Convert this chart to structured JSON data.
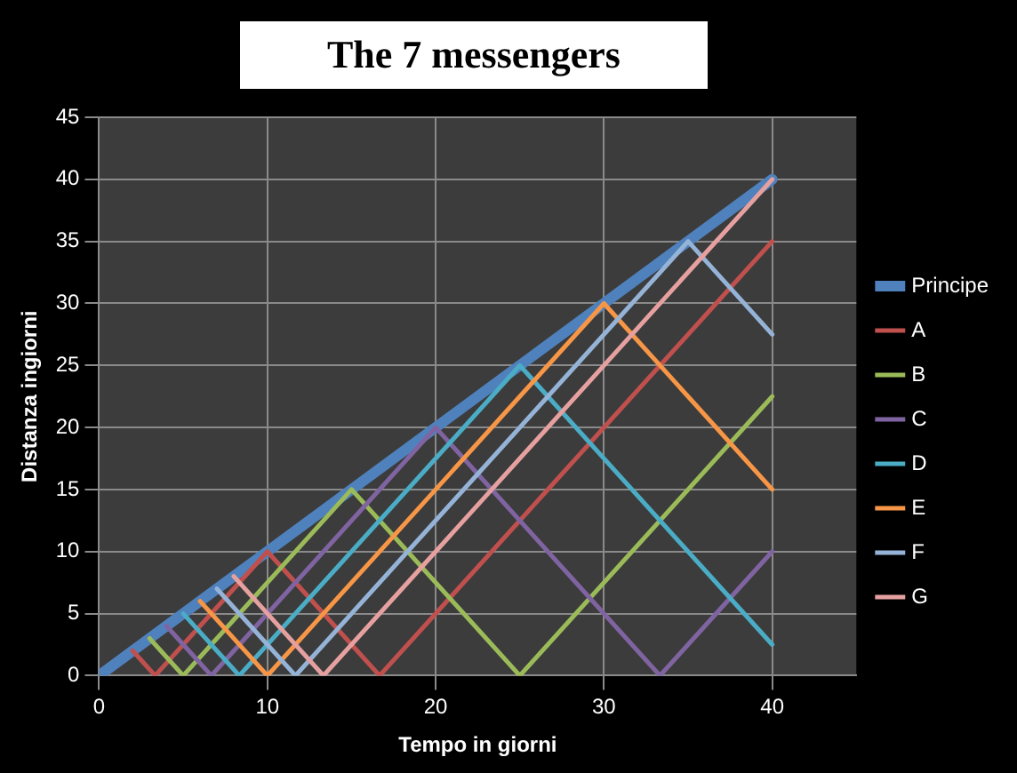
{
  "chart_data": {
    "type": "line",
    "title": "The 7 messengers",
    "xlabel": "Tempo in giorni",
    "ylabel": "Distanza ingiorni",
    "xlim": [
      0,
      45
    ],
    "xticks": [
      0,
      10,
      20,
      30,
      40
    ],
    "ylim": [
      0,
      45
    ],
    "yticks": [
      0,
      5,
      10,
      15,
      20,
      25,
      30,
      35,
      40,
      45
    ],
    "grid": true,
    "legend": "right",
    "marker": "none",
    "line_style": "solid",
    "series": [
      {
        "name": "Principe",
        "color": "#4f81bd",
        "x": [
          0,
          40
        ],
        "values": [
          0,
          40
        ]
      },
      {
        "name": "A",
        "color": "#c0504d",
        "x": [
          2,
          3.33,
          10,
          16.67,
          40
        ],
        "values": [
          2,
          0,
          10,
          0,
          35
        ]
      },
      {
        "name": "B",
        "color": "#9bbb59",
        "x": [
          3,
          5,
          15,
          25,
          40
        ],
        "values": [
          3,
          0,
          15,
          0,
          22.5
        ]
      },
      {
        "name": "C",
        "color": "#8064a2",
        "x": [
          4,
          6.67,
          20,
          33.33,
          40
        ],
        "values": [
          4,
          0,
          20,
          0,
          10
        ]
      },
      {
        "name": "D",
        "color": "#4bacc6",
        "x": [
          5,
          8.33,
          25,
          40
        ],
        "values": [
          5,
          0,
          25,
          2.5
        ]
      },
      {
        "name": "E",
        "color": "#f79646",
        "x": [
          6,
          10,
          30,
          40
        ],
        "values": [
          6,
          0,
          30,
          15
        ]
      },
      {
        "name": "F",
        "color": "#95b3d7",
        "x": [
          7,
          11.67,
          35,
          40
        ],
        "values": [
          7,
          0,
          35,
          27.5
        ]
      },
      {
        "name": "G",
        "color": "#e6a0a0",
        "x": [
          8,
          13.33,
          40
        ],
        "values": [
          8,
          0,
          40
        ]
      }
    ]
  }
}
